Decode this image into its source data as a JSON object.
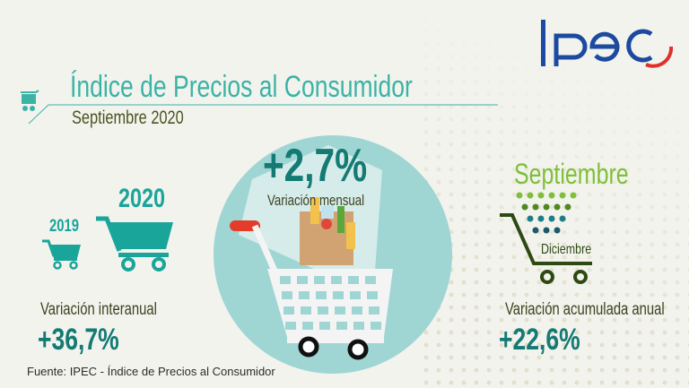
{
  "header": {
    "logo_text": "Ipec",
    "title": "Índice de Precios al Consumidor",
    "subtitle": "Septiembre 2020"
  },
  "monthly": {
    "value": "+2,7%",
    "label": "Variación mensual"
  },
  "annual": {
    "year_prev": "2019",
    "year_curr": "2020",
    "label": "Variación interanual",
    "value": "+36,7%"
  },
  "cumulative": {
    "from_month": "Septiembre",
    "to_month": "Diciembre",
    "label": "Variación acumulada anual",
    "value": "+22,6%"
  },
  "footer": {
    "source": "Fuente: IPEC - Índice de Precios al Consumidor"
  },
  "colors": {
    "teal": "#1aa59a",
    "dark_teal": "#137a74",
    "circle": "#9fd6d4",
    "green": "#7fbf3a",
    "dark_green": "#2e4a12",
    "logo_blue": "#1c4aa0",
    "logo_red": "#e0302a"
  }
}
